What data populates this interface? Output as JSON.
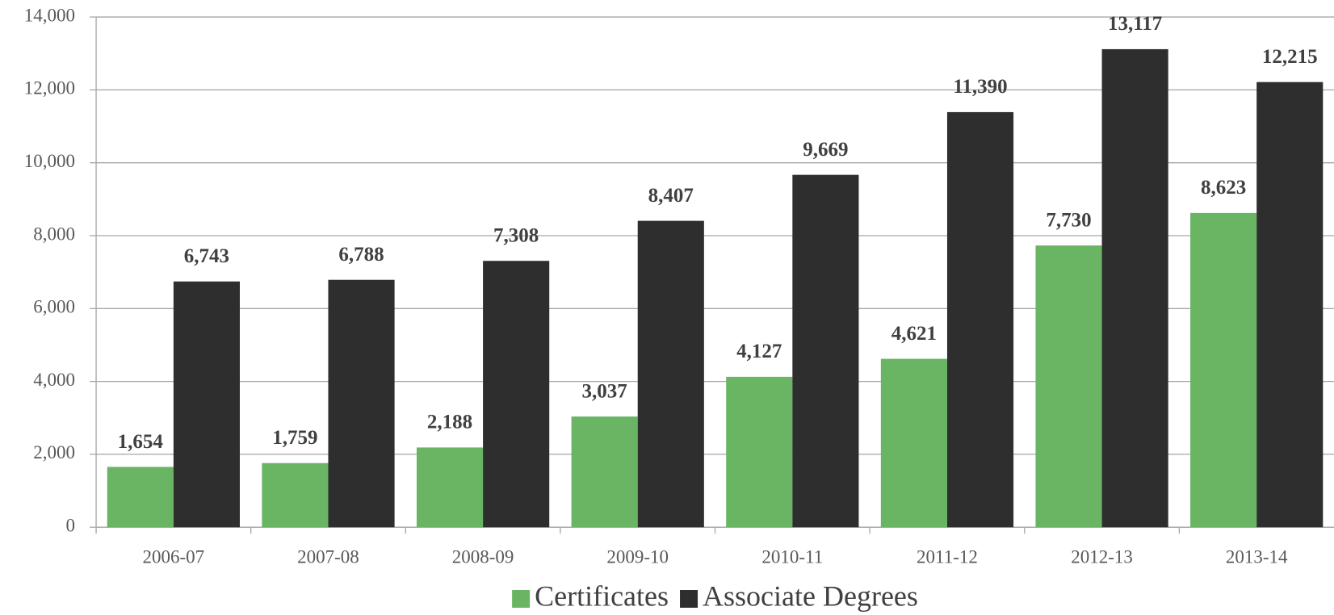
{
  "chart_data": {
    "type": "bar",
    "categories": [
      "2006-07",
      "2007-08",
      "2008-09",
      "2009-10",
      "2010-11",
      "2011-12",
      "2012-13",
      "2013-14"
    ],
    "series": [
      {
        "name": "Certificates",
        "color": "#6ab564",
        "values": [
          1654,
          1759,
          2188,
          3037,
          4127,
          4621,
          7730,
          8623
        ],
        "value_labels": [
          "1,654",
          "1,759",
          "2,188",
          "3,037",
          "4,127",
          "4,621",
          "7,730",
          "8,623"
        ]
      },
      {
        "name": "Associate Degrees",
        "color": "#2e2e2e",
        "values": [
          6743,
          6788,
          7308,
          8407,
          9669,
          11390,
          13117,
          12215
        ],
        "value_labels": [
          "6,743",
          "6,788",
          "7,308",
          "8,407",
          "9,669",
          "11,390",
          "13,117",
          "12,215"
        ]
      }
    ],
    "ylim": [
      0,
      14000
    ],
    "yticks": [
      0,
      {
        "value": 2000,
        "label": "2,000"
      },
      {
        "value": 4000,
        "label": "4,000"
      },
      {
        "value": 6000,
        "label": "6,000"
      },
      {
        "value": 8000,
        "label": "8,000"
      },
      {
        "value": 10000,
        "label": "10,000"
      },
      {
        "value": 12000,
        "label": "12,000"
      },
      {
        "value": 14000,
        "label": "14,000"
      }
    ],
    "grid": true,
    "legend": "bottom"
  }
}
